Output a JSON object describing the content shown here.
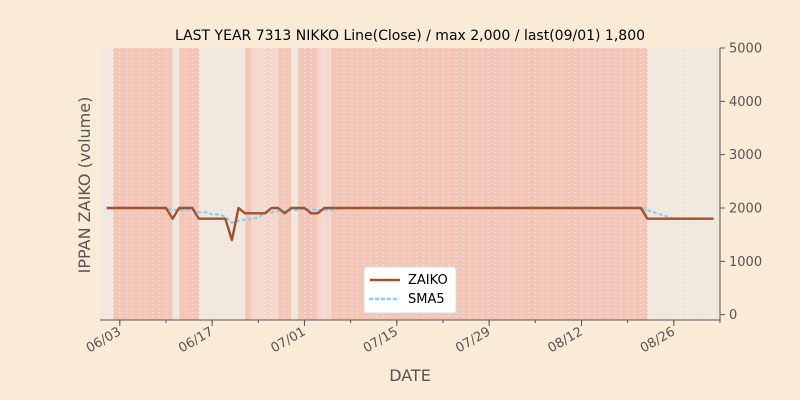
{
  "chart_data": {
    "type": "line",
    "title": "LAST YEAR 7313 NIKKO Line(Close) / max 2,000 / last(09/01) 1,800",
    "xlabel": "DATE",
    "ylabel": "IPPAN ZAIKO (volume)",
    "ylim": [
      -100,
      5000
    ],
    "yticks": [
      0,
      1000,
      2000,
      3000,
      4000,
      5000
    ],
    "ytick_labels": [
      "0",
      "1000",
      "2000",
      "3000",
      "4000",
      "5000"
    ],
    "y_axis_side": "right",
    "xtick_labels": [
      "06/03",
      "06/17",
      "07/01",
      "07/15",
      "07/29",
      "08/12",
      "08/26"
    ],
    "xtick_dates": [
      "2019-06-03",
      "2019-06-17",
      "2019-07-01",
      "2019-07-15",
      "2019-07-29",
      "2019-08-12",
      "2019-08-26"
    ],
    "xlim": [
      "2019-05-31",
      "2019-09-02"
    ],
    "grid": true,
    "legend_position": "bottom-center",
    "colors": {
      "background": "#faebd7",
      "plot_background": "#f2e7dc",
      "zaiko": "#a0522d",
      "sma5": "#87cefa",
      "band_strong": "#f4c6b8",
      "band_light": "#f6d7cc"
    },
    "x": [
      "2019-06-01",
      "2019-06-02",
      "2019-06-03",
      "2019-06-04",
      "2019-06-05",
      "2019-06-06",
      "2019-06-07",
      "2019-06-08",
      "2019-06-09",
      "2019-06-10",
      "2019-06-11",
      "2019-06-12",
      "2019-06-13",
      "2019-06-14",
      "2019-06-15",
      "2019-06-16",
      "2019-06-17",
      "2019-06-18",
      "2019-06-19",
      "2019-06-20",
      "2019-06-21",
      "2019-06-22",
      "2019-06-23",
      "2019-06-24",
      "2019-06-25",
      "2019-06-26",
      "2019-06-27",
      "2019-06-28",
      "2019-06-29",
      "2019-06-30",
      "2019-07-01",
      "2019-07-02",
      "2019-07-03",
      "2019-07-04",
      "2019-07-05",
      "2019-07-06",
      "2019-07-07",
      "2019-07-08",
      "2019-07-09",
      "2019-07-10",
      "2019-07-11",
      "2019-07-12",
      "2019-07-13",
      "2019-07-14",
      "2019-07-15",
      "2019-07-16",
      "2019-07-17",
      "2019-07-18",
      "2019-07-19",
      "2019-07-20",
      "2019-07-21",
      "2019-07-22",
      "2019-07-23",
      "2019-07-24",
      "2019-07-25",
      "2019-07-26",
      "2019-07-27",
      "2019-07-28",
      "2019-07-29",
      "2019-07-30",
      "2019-07-31",
      "2019-08-01",
      "2019-08-02",
      "2019-08-03",
      "2019-08-04",
      "2019-08-05",
      "2019-08-06",
      "2019-08-07",
      "2019-08-08",
      "2019-08-09",
      "2019-08-10",
      "2019-08-11",
      "2019-08-12",
      "2019-08-13",
      "2019-08-14",
      "2019-08-15",
      "2019-08-16",
      "2019-08-17",
      "2019-08-18",
      "2019-08-19",
      "2019-08-20",
      "2019-08-21",
      "2019-08-22",
      "2019-08-23",
      "2019-08-24",
      "2019-08-25",
      "2019-08-26",
      "2019-08-27",
      "2019-08-28",
      "2019-08-29",
      "2019-08-30",
      "2019-08-31",
      "2019-09-01"
    ],
    "series": [
      {
        "name": "ZAIKO",
        "style": "solid",
        "values": [
          2000,
          2000,
          2000,
          2000,
          2000,
          2000,
          2000,
          2000,
          2000,
          2000,
          1800,
          2000,
          2000,
          2000,
          1800,
          1800,
          1800,
          1800,
          1800,
          1400,
          2000,
          1900,
          1900,
          1900,
          1900,
          2000,
          2000,
          1900,
          2000,
          2000,
          2000,
          1900,
          1900,
          2000,
          2000,
          2000,
          2000,
          2000,
          2000,
          2000,
          2000,
          2000,
          2000,
          2000,
          2000,
          2000,
          2000,
          2000,
          2000,
          2000,
          2000,
          2000,
          2000,
          2000,
          2000,
          2000,
          2000,
          2000,
          2000,
          2000,
          2000,
          2000,
          2000,
          2000,
          2000,
          2000,
          2000,
          2000,
          2000,
          2000,
          2000,
          2000,
          2000,
          2000,
          2000,
          2000,
          2000,
          2000,
          2000,
          2000,
          2000,
          2000,
          1800,
          1800,
          1800,
          1800,
          1800,
          1800,
          1800,
          1800,
          1800,
          1800,
          1800
        ]
      },
      {
        "name": "SMA5",
        "style": "dotted",
        "values": [
          null,
          null,
          null,
          null,
          2000,
          2000,
          2000,
          2000,
          2000,
          2000,
          1960,
          1960,
          1960,
          1960,
          1920,
          1920,
          1880,
          1880,
          1840,
          1720,
          1760,
          1780,
          1800,
          1820,
          1900,
          1920,
          1940,
          1940,
          1960,
          1960,
          1980,
          1980,
          1960,
          1960,
          1960,
          1980,
          2000,
          2000,
          2000,
          2000,
          2000,
          2000,
          2000,
          2000,
          2000,
          2000,
          2000,
          2000,
          2000,
          2000,
          2000,
          2000,
          2000,
          2000,
          2000,
          2000,
          2000,
          2000,
          2000,
          2000,
          2000,
          2000,
          2000,
          2000,
          2000,
          2000,
          2000,
          2000,
          2000,
          2000,
          2000,
          2000,
          2000,
          2000,
          2000,
          2000,
          2000,
          2000,
          2000,
          2000,
          2000,
          2000,
          1960,
          1920,
          1880,
          1840,
          1800,
          1800,
          1800,
          1800,
          1800,
          1800,
          1800
        ]
      }
    ],
    "bands": [
      {
        "start": "2019-06-02",
        "end": "2019-06-11",
        "tone": "strong"
      },
      {
        "start": "2019-06-12",
        "end": "2019-06-15",
        "tone": "strong"
      },
      {
        "start": "2019-06-22",
        "end": "2019-06-23",
        "tone": "strong"
      },
      {
        "start": "2019-06-23",
        "end": "2019-06-27",
        "tone": "light"
      },
      {
        "start": "2019-06-27",
        "end": "2019-06-29",
        "tone": "strong"
      },
      {
        "start": "2019-06-30",
        "end": "2019-07-03",
        "tone": "strong"
      },
      {
        "start": "2019-07-03",
        "end": "2019-07-05",
        "tone": "light"
      },
      {
        "start": "2019-07-05",
        "end": "2019-08-22",
        "tone": "strong"
      }
    ]
  }
}
